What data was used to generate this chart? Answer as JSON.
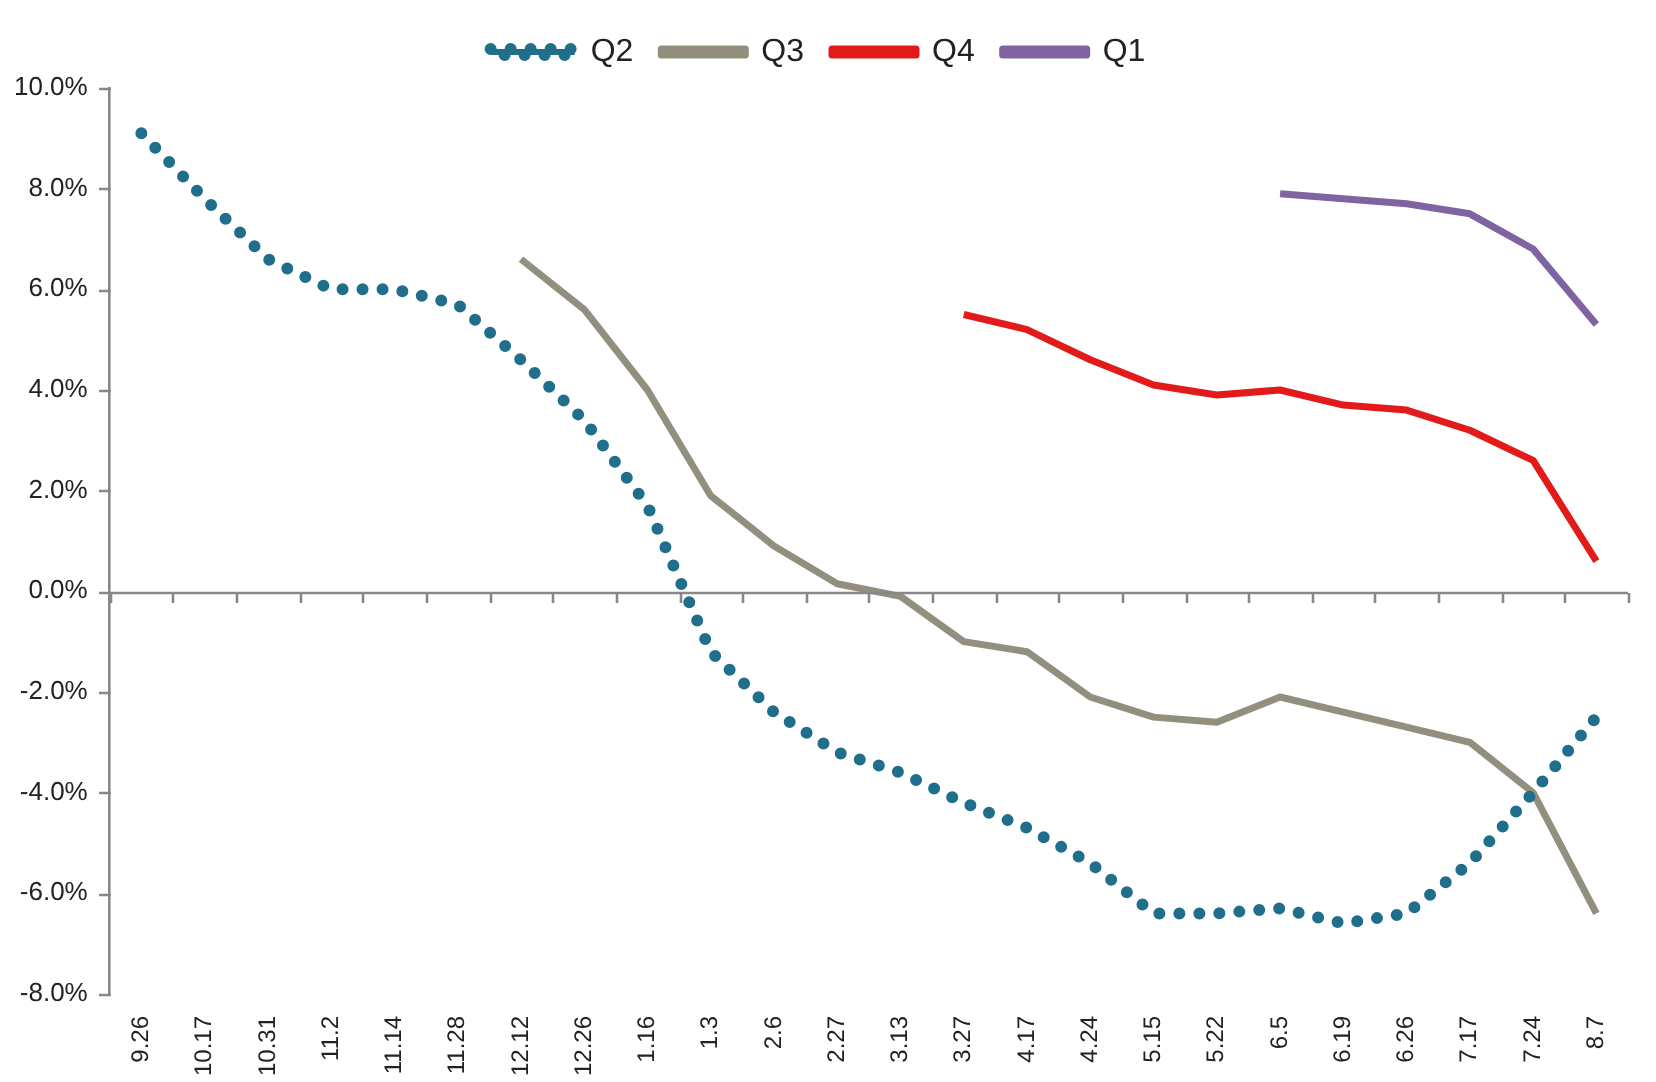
{
  "chart_data": {
    "type": "line",
    "categories": [
      "9.26",
      "10.17",
      "10.31",
      "11.2",
      "11.14",
      "11.28",
      "12.12",
      "12.26",
      "1.16",
      "1.3",
      "2.6",
      "2.27",
      "3.13",
      "3.27",
      "4.17",
      "4.24",
      "5.15",
      "5.22",
      "6.5",
      "6.19",
      "6.26",
      "7.17",
      "7.24",
      "8.7"
    ],
    "series": [
      {
        "name": "Q2",
        "color": "#1f6e8c",
        "line_style": "dotted",
        "values": [
          9.1,
          7.8,
          6.6,
          6.0,
          6.0,
          5.7,
          4.6,
          3.4,
          1.7,
          -1.2,
          -2.4,
          -3.2,
          -3.6,
          -4.2,
          -4.7,
          -5.4,
          -6.4,
          -6.4,
          -6.3,
          -6.6,
          -6.4,
          -5.4,
          -4.0,
          -2.5
        ]
      },
      {
        "name": "Q3",
        "color": "#938f7e",
        "line_style": "solid",
        "values": [
          null,
          null,
          null,
          null,
          null,
          null,
          6.6,
          5.6,
          4.0,
          1.9,
          0.9,
          0.15,
          -0.1,
          -1.0,
          -1.2,
          -2.1,
          -2.5,
          -2.6,
          -2.1,
          -2.4,
          -2.7,
          -3.0,
          -4.0,
          -6.4
        ]
      },
      {
        "name": "Q4",
        "color": "#e31a1a",
        "line_style": "solid",
        "values": [
          null,
          null,
          null,
          null,
          null,
          null,
          null,
          null,
          null,
          null,
          null,
          null,
          null,
          5.5,
          5.2,
          4.6,
          4.1,
          3.9,
          4.0,
          3.7,
          3.6,
          3.2,
          2.6,
          0.6
        ]
      },
      {
        "name": "Q1",
        "color": "#8064a2",
        "line_style": "solid",
        "values": [
          null,
          null,
          null,
          null,
          null,
          null,
          null,
          null,
          null,
          null,
          null,
          null,
          null,
          null,
          null,
          null,
          null,
          null,
          7.9,
          7.8,
          7.7,
          7.5,
          6.8,
          5.3
        ]
      }
    ],
    "ylim": [
      -8,
      10
    ],
    "yticks": [
      {
        "value": -8,
        "label": "-8.0%"
      },
      {
        "value": -6,
        "label": "-6.0%"
      },
      {
        "value": -4,
        "label": "-4.0%"
      },
      {
        "value": -2,
        "label": "-2.0%"
      },
      {
        "value": 0,
        "label": "0.0%"
      },
      {
        "value": 2,
        "label": "2.0%"
      },
      {
        "value": 4,
        "label": "4.0%"
      },
      {
        "value": 6,
        "label": "6.0%"
      },
      {
        "value": 8,
        "label": "8.0%"
      },
      {
        "value": 10,
        "label": "10.0%"
      }
    ],
    "ref_lines": [
      {
        "axis": "y",
        "value": 0,
        "color": "#888888",
        "line_style": "solid"
      }
    ],
    "grid": false,
    "legend": "top",
    "marker": "none"
  }
}
